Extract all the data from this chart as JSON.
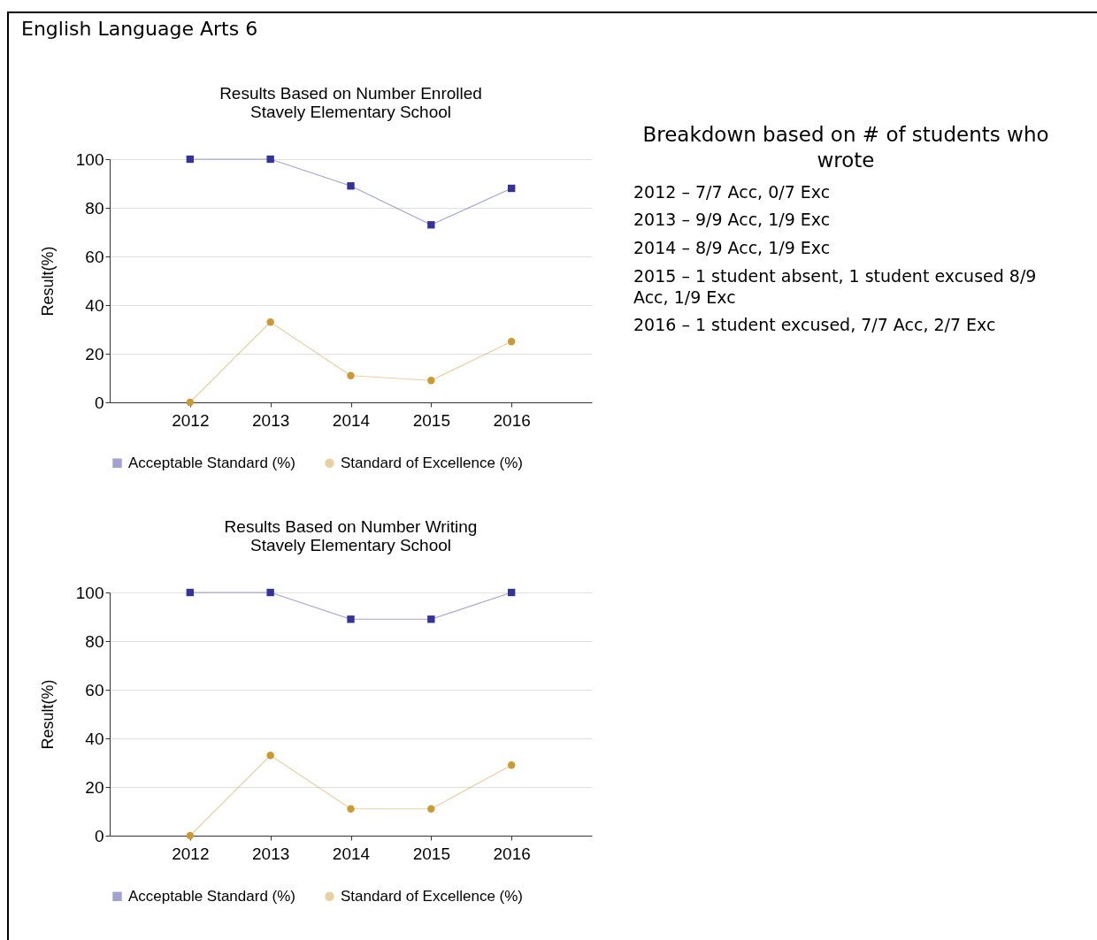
{
  "chart_data": [
    {
      "type": "other",
      "title": "English Language Arts 6"
    },
    {
      "type": "line",
      "title": "Results Based on Number Enrolled",
      "subtitle": "Stavely Elementary School",
      "ylabel": "Result(%)",
      "x": [
        2012,
        2013,
        2014,
        2015,
        2016
      ],
      "xlim": [
        2011,
        2017
      ],
      "xticks": [
        2012,
        2013,
        2014,
        2015,
        2016
      ],
      "ylim": [
        0,
        100
      ],
      "yticks": [
        0,
        20,
        40,
        60,
        80,
        100
      ],
      "grid": "y",
      "legend": "bottom",
      "series": [
        {
          "name": "Acceptable Standard (%)",
          "color": "#333399",
          "marker": "square",
          "values": [
            100,
            100,
            89,
            73,
            88
          ]
        },
        {
          "name": "Standard of Excellence (%)",
          "color": "#cc9933",
          "marker": "circle",
          "values": [
            0,
            33,
            11,
            9,
            25
          ]
        }
      ]
    },
    {
      "type": "other",
      "title": "Breakdown based on # of students who wrote",
      "annotations": [
        "2012 – 7/7 Acc, 0/7 Exc",
        "2013 – 9/9 Acc, 1/9 Exc",
        "2014 – 8/9 Acc, 1/9 Exc",
        "2015 – 1 student absent, 1 student excused 8/9 Acc,   1/9 Exc",
        "2016 – 1 student excused, 7/7 Acc, 2/7 Exc"
      ]
    },
    {
      "type": "line",
      "title": "Results Based on Number Writing",
      "subtitle": "Stavely Elementary School",
      "ylabel": "Result(%)",
      "x": [
        2012,
        2013,
        2014,
        2015,
        2016
      ],
      "xlim": [
        2011,
        2017
      ],
      "xticks": [
        2012,
        2013,
        2014,
        2015,
        2016
      ],
      "ylim": [
        0,
        100
      ],
      "yticks": [
        0,
        20,
        40,
        60,
        80,
        100
      ],
      "grid": "y",
      "legend": "bottom",
      "series": [
        {
          "name": "Acceptable Standard (%)",
          "color": "#333399",
          "marker": "square",
          "values": [
            100,
            100,
            89,
            89,
            100
          ]
        },
        {
          "name": "Standard of Excellence (%)",
          "color": "#cc9933",
          "marker": "circle",
          "values": [
            0,
            33,
            11,
            11,
            29
          ]
        }
      ]
    }
  ]
}
